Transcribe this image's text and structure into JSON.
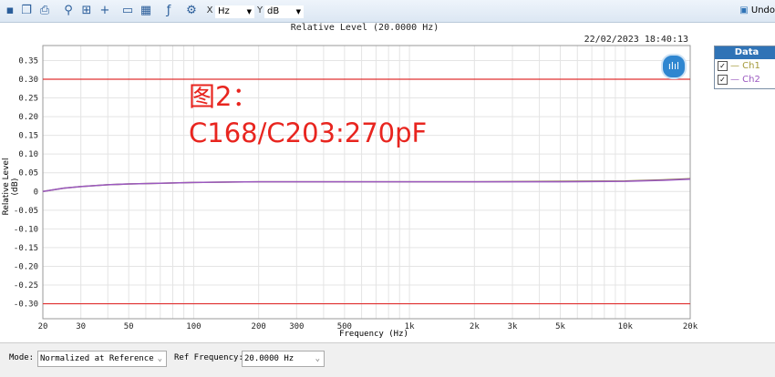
{
  "toolbar": {
    "icons": [
      "save-icon",
      "copy-icon",
      "print-icon",
      "zoom-icon",
      "fit-icon",
      "cursor-icon",
      "table-icon",
      "graph-icon",
      "function-icon",
      "settings-icon"
    ],
    "x_label": "X",
    "x_unit": "Hz",
    "y_label": "Y",
    "y_unit": "dB",
    "undo": "Undo"
  },
  "timestamp": "22/02/2023 18:40:13",
  "legend": {
    "title": "Data",
    "items": [
      {
        "label": "— Ch1",
        "color": "#a59a3a"
      },
      {
        "label": "— Ch2",
        "color": "#9b59c0"
      }
    ]
  },
  "annotation": {
    "line1": "图2：",
    "line2": "C168/C203:270pF",
    "color": "#e8251f"
  },
  "bottom": {
    "mode_label": "Mode:",
    "mode_value": "Normalized at Reference",
    "ref_label": "Ref Frequency:",
    "ref_value": "20.0000 Hz"
  },
  "chart_data": {
    "type": "line",
    "title": "Relative Level (20.0000 Hz)",
    "xlabel": "Frequency (Hz)",
    "ylabel": "Relative Level (dB)",
    "xscale": "log",
    "xlim": [
      20,
      20000
    ],
    "ylim": [
      -0.34,
      0.39
    ],
    "xticks": [
      20,
      30,
      50,
      100,
      200,
      300,
      500,
      1000,
      2000,
      3000,
      5000,
      10000,
      20000
    ],
    "xtick_labels": [
      "20",
      "30",
      "50",
      "100",
      "200",
      "300",
      "500",
      "1k",
      "2k",
      "3k",
      "5k",
      "10k",
      "20k"
    ],
    "yticks": [
      0.35,
      0.3,
      0.25,
      0.2,
      0.15,
      0.1,
      0.05,
      0,
      -0.05,
      -0.1,
      -0.15,
      -0.2,
      -0.25,
      -0.3
    ],
    "ytick_labels": [
      "0.35",
      "0.30",
      "0.25",
      "0.20",
      "0.15",
      "0.10",
      "0.05",
      "0",
      "-0.05",
      "-0.10",
      "-0.15",
      "-0.20",
      "-0.25",
      "-0.30"
    ],
    "grid": true,
    "limit_lines": [
      {
        "value": 0.3,
        "color": "#e03030"
      },
      {
        "value": -0.3,
        "color": "#e03030"
      }
    ],
    "series": [
      {
        "name": "Ch1",
        "color": "#8a7a40",
        "x": [
          20,
          25,
          30,
          40,
          50,
          70,
          100,
          200,
          500,
          1000,
          2000,
          5000,
          10000,
          15000,
          20000
        ],
        "y": [
          0,
          0.009,
          0.013,
          0.018,
          0.02,
          0.022,
          0.024,
          0.026,
          0.026,
          0.026,
          0.026,
          0.027,
          0.028,
          0.031,
          0.034
        ]
      },
      {
        "name": "Ch2",
        "color": "#9b59c0",
        "x": [
          20,
          25,
          30,
          40,
          50,
          70,
          100,
          200,
          500,
          1000,
          2000,
          5000,
          10000,
          15000,
          20000
        ],
        "y": [
          0,
          0.009,
          0.013,
          0.018,
          0.02,
          0.022,
          0.024,
          0.026,
          0.026,
          0.026,
          0.026,
          0.026,
          0.027,
          0.03,
          0.033
        ]
      }
    ]
  }
}
